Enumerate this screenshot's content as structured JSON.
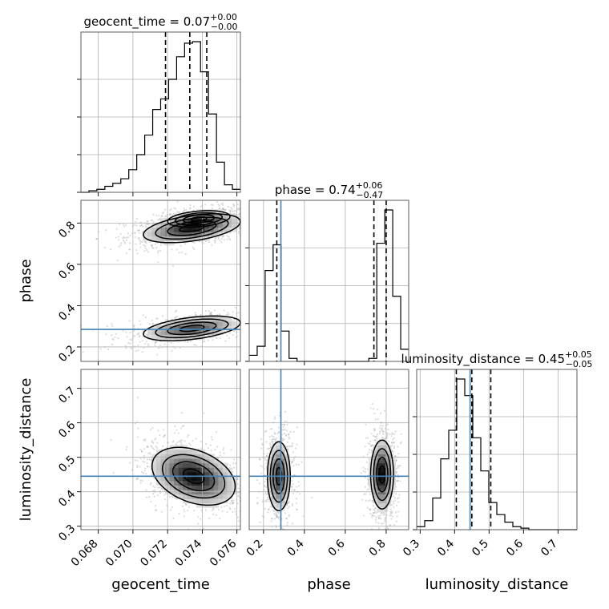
{
  "chart_data": {
    "type": "corner",
    "parameters": [
      "geocent_time",
      "phase",
      "luminosity_distance"
    ],
    "axis_labels": {
      "geocent_time": "geocent_time",
      "phase": "phase",
      "luminosity_distance": "luminosity_distance"
    },
    "ranges": {
      "geocent_time": [
        0.067,
        0.0762
      ],
      "phase": [
        0.13,
        0.91
      ],
      "luminosity_distance": [
        0.29,
        0.755
      ]
    },
    "ticks": {
      "geocent_time": [
        0.068,
        0.07,
        0.072,
        0.074,
        0.076
      ],
      "phase": [
        0.2,
        0.4,
        0.6,
        0.8
      ],
      "phase_y": [
        0.2,
        0.4,
        0.6,
        0.8
      ],
      "luminosity_distance": [
        0.3,
        0.4,
        0.5,
        0.6,
        0.7
      ],
      "luminosity_distance_y": [
        0.3,
        0.4,
        0.5,
        0.6,
        0.7
      ]
    },
    "tick_labels": {
      "geocent_time": [
        "0.068",
        "0.070",
        "0.072",
        "0.074",
        "0.076"
      ],
      "phase": [
        "0.2",
        "0.4",
        "0.6",
        "0.8"
      ],
      "phase_y": [
        "0.2",
        "0.4",
        "0.6",
        "0.8"
      ],
      "luminosity_distance": [
        "0.3",
        "0.4",
        "0.5",
        "0.6",
        "0.7"
      ],
      "luminosity_distance_y": [
        "0.3",
        "0.4",
        "0.5",
        "0.6",
        "0.7"
      ]
    },
    "titles": {
      "geocent_time": {
        "name": "geocent_time",
        "median": "0.07",
        "plus": "+0.00",
        "minus": "−0.00"
      },
      "phase": {
        "name": "phase",
        "median": "0.74",
        "plus": "+0.06",
        "minus": "−0.47"
      },
      "luminosity_distance": {
        "name": "luminosity_distance",
        "median": "0.45",
        "plus": "+0.05",
        "minus": "−0.05"
      }
    },
    "quantiles": {
      "geocent_time": [
        0.07188,
        0.07328,
        0.07426
      ],
      "phase": [
        0.265,
        0.74,
        0.8
      ],
      "luminosity_distance": [
        0.405,
        0.45,
        0.505
      ]
    },
    "truths": {
      "phase": 0.285,
      "luminosity_distance": 0.445
    },
    "truth_color": "#4682b4",
    "histograms": {
      "geocent_time": {
        "edges_start": 0.067,
        "bin_width": 0.00046,
        "counts": [
          0,
          1,
          2,
          4,
          6,
          9,
          15,
          25,
          38,
          55,
          62,
          75,
          90,
          99,
          100,
          80,
          52,
          20,
          5,
          2
        ]
      },
      "phase": {
        "edges_start": 0.13,
        "bin_width": 0.039,
        "counts": [
          4,
          10,
          60,
          77,
          20,
          2,
          0,
          0,
          0,
          0,
          0,
          0,
          0,
          0,
          0,
          2,
          78,
          100,
          43,
          8
        ]
      },
      "luminosity_distance": {
        "edges_start": 0.29,
        "bin_width": 0.02325,
        "counts": [
          2,
          6,
          21,
          47,
          66,
          100,
          89,
          61,
          39,
          18,
          10,
          5,
          2,
          1,
          0,
          0,
          0,
          0,
          0,
          0
        ]
      }
    },
    "density_2d": [
      {
        "x": "geocent_time",
        "y": "phase",
        "modes": [
          {
            "cx": 0.0734,
            "cy": 0.775,
            "sx": 0.0014,
            "sy": 0.035,
            "rho": 0.45,
            "weight": 1.0
          },
          {
            "cx": 0.0738,
            "cy": 0.82,
            "sx": 0.0009,
            "sy": 0.02,
            "rho": 0.3,
            "weight": 0.5
          },
          {
            "cx": 0.0734,
            "cy": 0.29,
            "sx": 0.0014,
            "sy": 0.03,
            "rho": 0.45,
            "weight": 0.8
          }
        ]
      },
      {
        "x": "geocent_time",
        "y": "luminosity_distance",
        "modes": [
          {
            "cx": 0.0735,
            "cy": 0.445,
            "sx": 0.0012,
            "sy": 0.042,
            "rho": -0.35,
            "weight": 1.0
          }
        ]
      },
      {
        "x": "phase",
        "y": "luminosity_distance",
        "modes": [
          {
            "cx": 0.275,
            "cy": 0.445,
            "sx": 0.028,
            "sy": 0.05,
            "rho": 0.0,
            "weight": 0.8
          },
          {
            "cx": 0.78,
            "cy": 0.45,
            "sx": 0.028,
            "sy": 0.05,
            "rho": 0.0,
            "weight": 1.0
          }
        ]
      }
    ],
    "grid": true,
    "colors": {
      "hist": "#000000",
      "quantile": "#000000",
      "grid": "#b0b0b0"
    }
  }
}
